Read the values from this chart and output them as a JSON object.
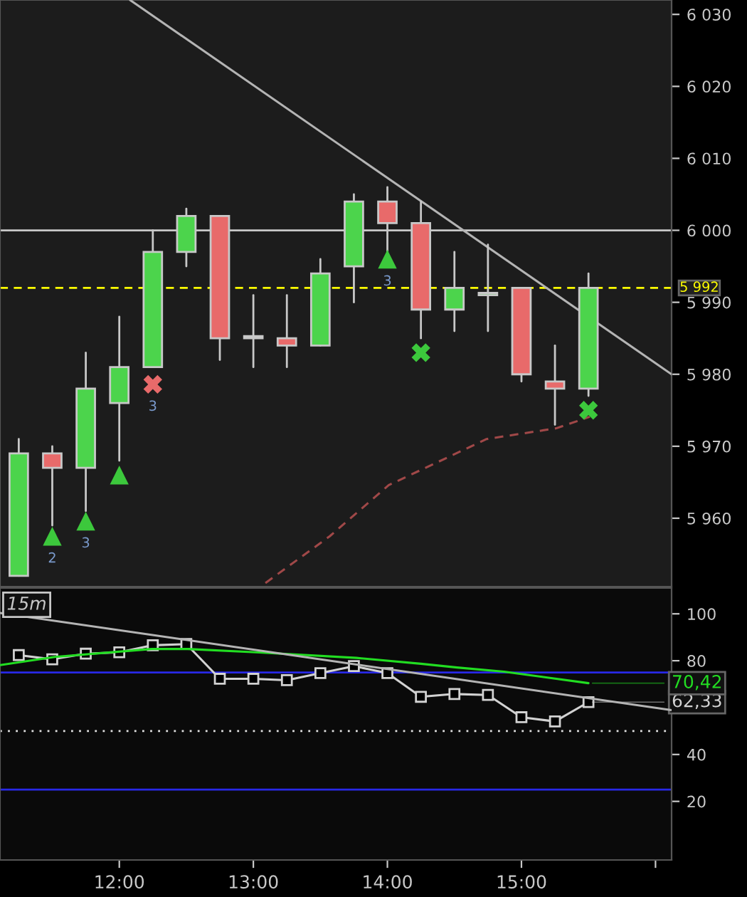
{
  "chart_data": [
    {
      "type": "candlestick",
      "x": [
        11.25,
        11.5,
        11.75,
        12.0,
        12.25,
        12.5,
        12.75,
        13.0,
        13.25,
        13.5,
        13.75,
        14.0,
        14.25,
        14.5,
        14.75,
        15.0,
        15.25,
        15.5
      ],
      "ohlc": [
        [
          5952,
          5971,
          5952,
          5969
        ],
        [
          5969,
          5970,
          5959,
          5967
        ],
        [
          5967,
          5983,
          5961,
          5978
        ],
        [
          5976,
          5988,
          5968,
          5981
        ],
        [
          5981,
          6000,
          5981,
          5997
        ],
        [
          5997,
          6003,
          5995,
          6002
        ],
        [
          6002,
          6002,
          5982,
          5985
        ],
        [
          5985,
          5991,
          5981,
          5985
        ],
        [
          5985,
          5991,
          5981,
          5984
        ],
        [
          5984,
          5996,
          5984,
          5994
        ],
        [
          5995,
          6005,
          5990,
          6004
        ],
        [
          6004,
          6006,
          5997,
          6001
        ],
        [
          6001,
          6004,
          5985,
          5989
        ],
        [
          5989,
          5997,
          5986,
          5992
        ],
        [
          5991,
          5998,
          5986,
          5991
        ],
        [
          5992,
          5992,
          5979,
          5980
        ],
        [
          5979,
          5984,
          5973,
          5978
        ],
        [
          5978,
          5994,
          5977,
          5992
        ]
      ],
      "colors": [
        "#4cd44c",
        "#e86a6a",
        "#4cd44c",
        "#4cd44c",
        "#4cd44c",
        "#4cd44c",
        "#e86a6a",
        "#c8c8c8",
        "#e86a6a",
        "#4cd44c",
        "#4cd44c",
        "#e86a6a",
        "#e86a6a",
        "#4cd44c",
        "#4cd44c",
        "#e86a6a",
        "#e86a6a",
        "#4cd44c"
      ],
      "series": [
        {
          "type": "line",
          "x": [
            12.08,
            16.12
          ],
          "values": [
            6032,
            5980
          ],
          "color": "#b4b4b4",
          "line_style": "solid"
        },
        {
          "type": "line",
          "x": [
            13.09,
            13.57,
            14.01,
            14.74,
            15.26,
            15.51
          ],
          "values": [
            5951,
            5957.5,
            5964.6,
            5971,
            5972.5,
            5974.1
          ],
          "color": "#a04848",
          "line_style": "dashed"
        },
        {
          "type": "scatter",
          "x": [
            12.25
          ],
          "values": [
            5978.6
          ],
          "color": "#e86a6a",
          "marker": "cross"
        },
        {
          "type": "scatter",
          "x": [
            11.5,
            11.75,
            14.0
          ],
          "values": [
            5957.5,
            5959.6,
            5996
          ],
          "color": "#3cc83c",
          "marker": "triangle"
        },
        {
          "type": "scatter",
          "x": [
            14.25,
            15.5
          ],
          "values": [
            5983,
            5975
          ],
          "color": "#3cc83c",
          "marker": "cross"
        },
        {
          "type": "scatter",
          "x": [
            12.0
          ],
          "values": [
            5966
          ],
          "color": "#3cc83c",
          "marker": "triangle"
        }
      ],
      "annotations": [
        "3",
        "2",
        "3",
        "3"
      ],
      "ref_lines": [
        {
          "axis": "y",
          "value": 6000,
          "color": "#c8c8c8",
          "line_style": "solid"
        },
        {
          "axis": "y",
          "value": 5992,
          "label": "5 992",
          "color": "#ffff00",
          "line_style": "dashed"
        }
      ],
      "xlim": [
        11.11,
        16.12
      ],
      "ylim": [
        5950.5,
        6032
      ],
      "yticks": [
        {
          "value": 5960,
          "label": "5 960"
        },
        {
          "value": 5970,
          "label": "5 970"
        },
        {
          "value": 5980,
          "label": "5 980"
        },
        {
          "value": 5990,
          "label": "5 990"
        },
        {
          "value": 6000,
          "label": "6 000"
        },
        {
          "value": 6010,
          "label": "6 010"
        },
        {
          "value": 6020,
          "label": "6 020"
        },
        {
          "value": 6030,
          "label": "6 030"
        }
      ],
      "tick_labels": "y",
      "grid": false,
      "legend": false
    },
    {
      "type": "line",
      "annotations": [
        "15m"
      ],
      "series": [
        {
          "x": [
            11.25,
            11.5,
            11.75,
            12.0,
            12.25,
            12.5,
            12.75,
            13.0,
            13.25,
            13.5,
            13.75,
            14.0,
            14.25,
            14.5,
            14.75,
            15.0,
            15.25,
            15.5
          ],
          "values": [
            82.4,
            80.6,
            83,
            83.6,
            86.6,
            87.1,
            72.3,
            72.3,
            71.7,
            74.7,
            77.7,
            74.7,
            64.6,
            65.8,
            65.4,
            55.9,
            54.1,
            62.33
          ],
          "value_labels": [
            null,
            null,
            null,
            null,
            null,
            null,
            null,
            null,
            null,
            null,
            null,
            null,
            null,
            null,
            null,
            null,
            null,
            "62,33"
          ],
          "color": "#d2d2d2",
          "marker": "square",
          "line_style": "solid"
        },
        {
          "x": [
            11.11,
            11.52,
            12.24,
            12.51,
            13.02,
            13.77,
            14.25,
            14.52,
            14.87,
            15.5
          ],
          "values": [
            78.1,
            81.6,
            85,
            85,
            83.6,
            81.2,
            78.7,
            77.1,
            75.3,
            70.42
          ],
          "value_labels": [
            null,
            null,
            null,
            null,
            null,
            null,
            null,
            null,
            null,
            "70,42"
          ],
          "color": "#22dd22",
          "marker": "none",
          "line_style": "solid"
        },
        {
          "x": [
            11.11,
            16.12
          ],
          "values": [
            100.4,
            58.9
          ],
          "color": "#b4b4b4",
          "marker": "none",
          "line_style": "solid"
        }
      ],
      "ref_lines": [
        {
          "axis": "y",
          "value": 75,
          "color": "#2828e6",
          "line_style": "solid"
        },
        {
          "axis": "y",
          "value": 25,
          "color": "#2828e6",
          "line_style": "solid"
        },
        {
          "axis": "y",
          "value": 50,
          "color": "#e0e0e0",
          "line_style": "dotted"
        }
      ],
      "xlim": [
        11.11,
        16.12
      ],
      "ylim": [
        -5,
        111
      ],
      "xticks": [
        {
          "value": 12,
          "label": "12:00"
        },
        {
          "value": 13,
          "label": "13:00"
        },
        {
          "value": 14,
          "label": "14:00"
        },
        {
          "value": 15,
          "label": "15:00"
        },
        {
          "value": 16,
          "label": null
        }
      ],
      "yticks": [
        20,
        40,
        80,
        100
      ],
      "grid": false,
      "legend": false
    }
  ]
}
